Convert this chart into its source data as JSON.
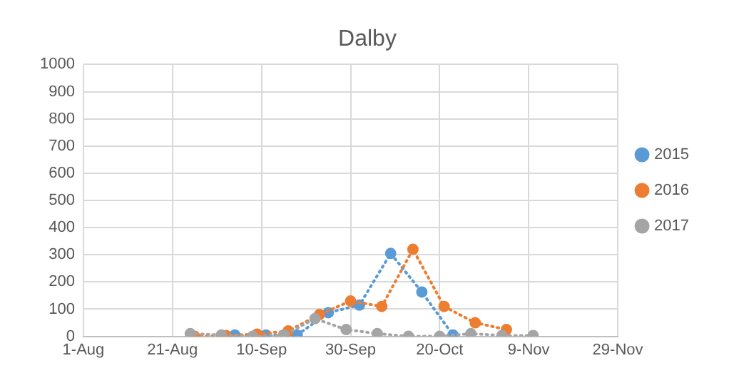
{
  "chart_data": {
    "type": "line",
    "title": "Dalby",
    "xlim": [
      "--08-01",
      "--11-29"
    ],
    "xticks": [
      {
        "value": "--08-01",
        "label": "1-Aug"
      },
      {
        "value": "--08-21",
        "label": "21-Aug"
      },
      {
        "value": "--09-10",
        "label": "10-Sep"
      },
      {
        "value": "--09-30",
        "label": "30-Sep"
      },
      {
        "value": "--10-20",
        "label": "20-Oct"
      },
      {
        "value": "--11-09",
        "label": "9-Nov"
      },
      {
        "value": "--11-29",
        "label": "29-Nov"
      }
    ],
    "ylim": [
      0,
      1000
    ],
    "yticks": [
      0,
      100,
      200,
      300,
      400,
      500,
      600,
      700,
      800,
      900,
      1000
    ],
    "grid": true,
    "legend": "right",
    "marker": "circle",
    "line_style": "dotted",
    "series": [
      {
        "name": "2015",
        "color": "#5b9bd5",
        "x": [
          "--09-04",
          "--09-11",
          "--09-18",
          "--09-25",
          "--10-02",
          "--10-09",
          "--10-16",
          "--10-23"
        ],
        "values": [
          5,
          5,
          5,
          87,
          115,
          305,
          163,
          5
        ]
      },
      {
        "name": "2016",
        "color": "#ed7d31",
        "x": [
          "--08-26",
          "--09-02",
          "--09-09",
          "--09-16",
          "--09-23",
          "--09-30",
          "--10-07",
          "--10-14",
          "--10-21",
          "--10-28",
          "--11-04"
        ],
        "values": [
          0,
          3,
          8,
          20,
          80,
          130,
          110,
          320,
          110,
          50,
          25
        ]
      },
      {
        "name": "2017",
        "color": "#a5a5a5",
        "x": [
          "--08-25",
          "--09-01",
          "--09-08",
          "--09-15",
          "--09-22",
          "--09-29",
          "--10-06",
          "--10-13",
          "--10-20",
          "--10-27",
          "--11-03",
          "--11-10"
        ],
        "values": [
          10,
          5,
          0,
          5,
          65,
          25,
          10,
          0,
          0,
          10,
          3,
          3
        ]
      }
    ]
  }
}
